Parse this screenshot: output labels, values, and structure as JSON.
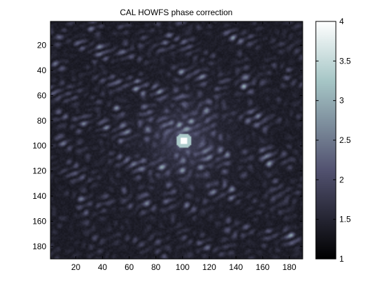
{
  "chart_data": {
    "type": "heatmap",
    "title": "CAL HOWFS phase correction",
    "xlabel": "",
    "ylabel": "",
    "xlim": [
      1,
      190
    ],
    "ylim": [
      1,
      190
    ],
    "y_reversed": true,
    "x_ticks": [
      20,
      40,
      60,
      80,
      100,
      120,
      140,
      160,
      180
    ],
    "y_ticks": [
      20,
      40,
      60,
      80,
      100,
      120,
      140,
      160,
      180
    ],
    "peak": {
      "x": 100,
      "y": 95,
      "value": 4
    },
    "colorbar": {
      "range": [
        1,
        4
      ],
      "ticks": [
        1,
        1.5,
        2,
        2.5,
        3,
        3.5,
        4
      ],
      "tick_labels": [
        "1",
        "1.5",
        "2",
        "2.5",
        "3",
        "3.5",
        "4"
      ],
      "colormap": "bone"
    },
    "grid": false,
    "colors": {
      "dark": "#000000",
      "mid": "#4d4d6e",
      "light": "#a6c7c7",
      "white": "#ffffff"
    }
  }
}
